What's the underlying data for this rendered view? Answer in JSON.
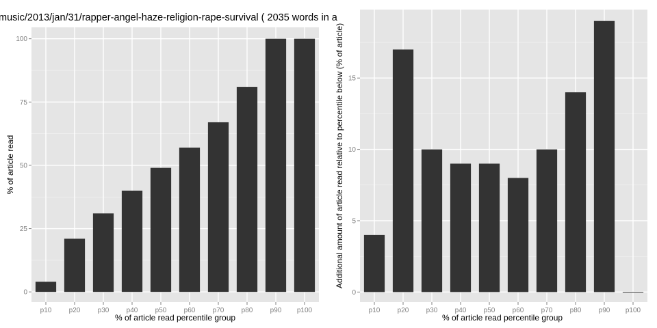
{
  "chart_data": [
    {
      "type": "bar",
      "title": "music/2013/jan/31/rapper-angel-haze-religion-rape-survival ( 2035 words in a",
      "xlabel": "% of article read percentile group",
      "ylabel": "% of article read",
      "categories": [
        "p10",
        "p20",
        "p30",
        "p40",
        "p50",
        "p60",
        "p70",
        "p80",
        "p90",
        "p100"
      ],
      "values": [
        4,
        21,
        31,
        40,
        49,
        57,
        67,
        81,
        100,
        100
      ],
      "ylim": [
        -4,
        104.5
      ],
      "yticks": [
        0,
        25,
        50,
        75,
        100
      ],
      "ytick_labels": [
        "0",
        "25",
        "50",
        "75",
        "100"
      ],
      "grid": true,
      "bar_color": "#333333",
      "panel_color": "#e5e5e5"
    },
    {
      "type": "bar",
      "title": "",
      "xlabel": "% of article read percentile group",
      "ylabel": "Additional amount of article read relative to percentile below (% of article)",
      "categories": [
        "p10",
        "p20",
        "p30",
        "p40",
        "p50",
        "p60",
        "p70",
        "p80",
        "p90",
        "p100"
      ],
      "values": [
        4,
        17,
        10,
        9,
        9,
        8,
        10,
        14,
        19,
        0
      ],
      "ylim": [
        -0.7,
        19.8
      ],
      "yticks": [
        0,
        5,
        10,
        15
      ],
      "ytick_labels": [
        "0",
        "5",
        "10",
        "15"
      ],
      "grid": true,
      "bar_color": "#333333",
      "panel_color": "#e5e5e5"
    }
  ]
}
